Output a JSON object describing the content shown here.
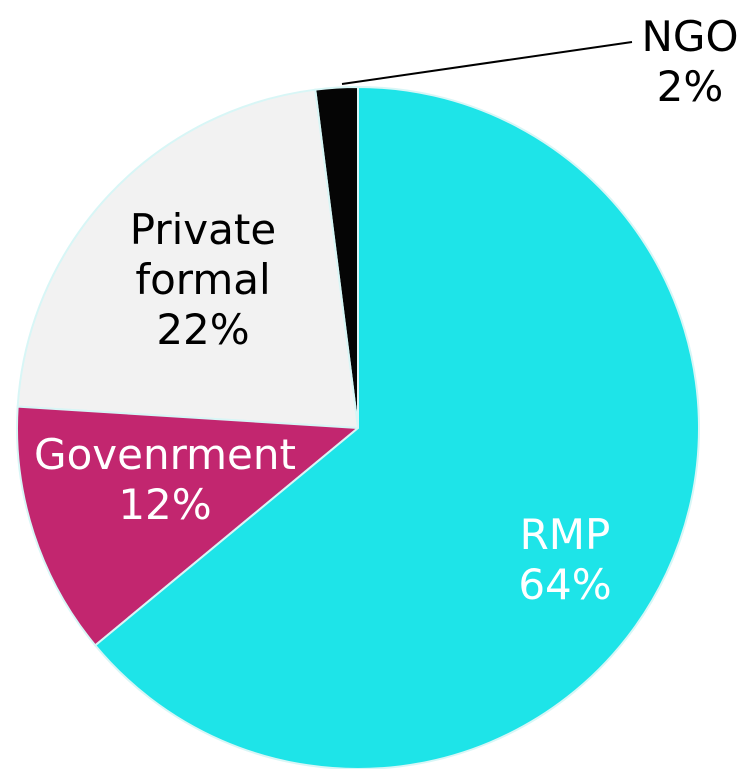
{
  "chart_data": {
    "type": "pie",
    "categories": [
      "RMP",
      "Govenrment",
      "Private formal",
      "NGO"
    ],
    "values": [
      64,
      12,
      22,
      2
    ],
    "value_labels": [
      "64%",
      "12%",
      "22%",
      "2%"
    ],
    "colors": [
      "#1ee4e8",
      "#c2266f",
      "#f2f2f2",
      "#050505"
    ]
  }
}
